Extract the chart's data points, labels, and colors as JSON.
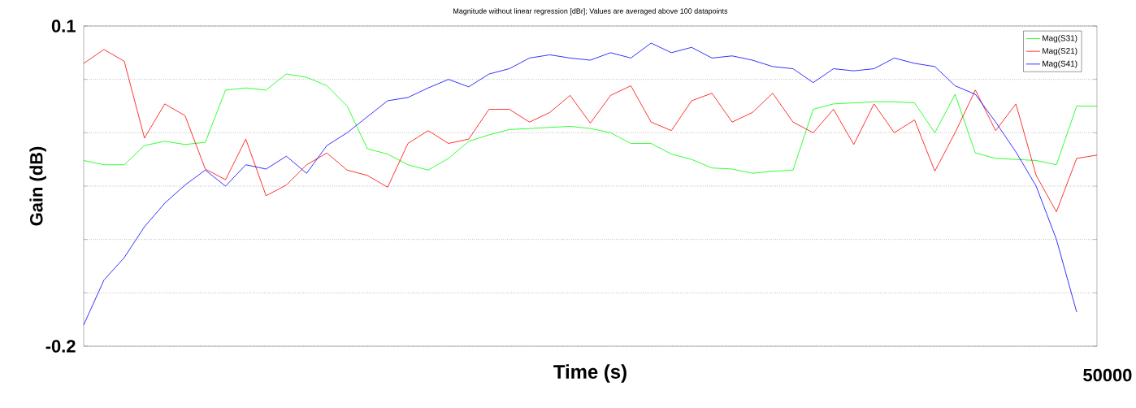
{
  "chart_data": {
    "type": "line",
    "title": "Magnitude without linear regression [dBr]; Values are averaged above 100 datapoints",
    "xlabel": "Time (s)",
    "ylabel": "Gain (dB)",
    "annotations": [
      "50000"
    ],
    "categories": [
      null,
      null,
      null,
      null,
      null,
      null,
      null,
      null,
      null,
      null,
      null,
      null,
      null,
      null,
      null,
      null,
      null,
      null,
      null,
      null,
      null,
      null,
      null,
      null,
      null,
      null,
      null,
      null,
      null,
      null,
      null,
      null,
      null,
      null,
      null,
      null,
      null,
      null,
      null,
      null,
      null,
      null,
      null,
      null,
      null,
      null,
      null,
      null,
      null,
      null,
      null
    ],
    "ylim": [
      -0.2,
      0.1
    ],
    "yticks": [
      {
        "value": -0.2,
        "label": "-0.2"
      },
      {
        "value": -0.15,
        "label": null
      },
      {
        "value": -0.1,
        "label": null
      },
      {
        "value": -0.05,
        "label": null
      },
      {
        "value": 0,
        "label": null
      },
      {
        "value": 0.05,
        "label": null
      },
      {
        "value": 0.1,
        "label": "0.1"
      }
    ],
    "grid": "y",
    "legend": "top right",
    "marker": "none",
    "line_style": "solid",
    "series": [
      {
        "name": "Mag(S31)",
        "color": "#00ff00",
        "values": [
          -0.026,
          -0.03,
          -0.03,
          -0.012,
          -0.008,
          -0.011,
          -0.009,
          0.04,
          0.042,
          0.04,
          0.055,
          0.052,
          0.044,
          0.025,
          -0.015,
          -0.02,
          -0.03,
          -0.035,
          -0.024,
          -0.008,
          -0.002,
          0.003,
          0.004,
          0.005,
          0.006,
          0.004,
          0.0,
          -0.01,
          -0.01,
          -0.02,
          -0.025,
          -0.033,
          -0.034,
          -0.038,
          -0.036,
          -0.035,
          0.022,
          0.027,
          0.028,
          0.029,
          0.029,
          0.028,
          0.0,
          0.036,
          -0.019,
          -0.024,
          -0.025,
          -0.026,
          -0.03,
          0.025,
          0.025
        ]
      },
      {
        "name": "Mag(S21)",
        "color": "#ff0000",
        "values": [
          0.065,
          0.078,
          0.067,
          -0.005,
          0.027,
          0.016,
          -0.034,
          -0.044,
          -0.006,
          -0.059,
          -0.049,
          -0.03,
          -0.019,
          -0.035,
          -0.04,
          -0.051,
          -0.01,
          0.002,
          -0.01,
          -0.006,
          0.022,
          0.022,
          0.01,
          0.019,
          0.035,
          0.009,
          0.035,
          0.044,
          0.01,
          0.002,
          0.03,
          0.037,
          0.01,
          0.019,
          0.037,
          0.01,
          0.0,
          0.022,
          -0.011,
          0.027,
          0.0,
          0.012,
          -0.036,
          0.0,
          0.04,
          0.002,
          0.027,
          -0.04,
          -0.074,
          -0.024,
          -0.021
        ]
      },
      {
        "name": "Mag(S41)",
        "color": "#0000ff",
        "values": [
          -0.18,
          -0.138,
          -0.117,
          -0.088,
          -0.066,
          -0.049,
          -0.035,
          -0.05,
          -0.03,
          -0.034,
          -0.022,
          -0.038,
          -0.012,
          0.0,
          0.015,
          0.03,
          0.033,
          0.042,
          0.05,
          0.043,
          0.055,
          0.06,
          0.07,
          0.073,
          0.07,
          0.068,
          0.075,
          0.07,
          0.084,
          0.075,
          0.08,
          0.07,
          0.072,
          0.068,
          0.062,
          0.06,
          0.047,
          0.06,
          0.058,
          0.06,
          0.07,
          0.065,
          0.062,
          0.044,
          0.036,
          0.01,
          -0.018,
          -0.05,
          -0.1,
          -0.168,
          null
        ]
      }
    ]
  }
}
